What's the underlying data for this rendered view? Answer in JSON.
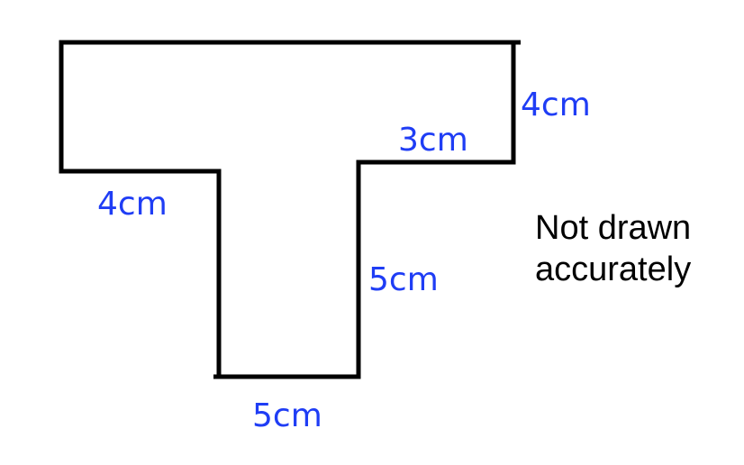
{
  "colors": {
    "label_color": "#1f3df5",
    "outline_color": "#000000",
    "background": "#ffffff"
  },
  "labels": {
    "right_top": "4cm",
    "shoulder_right": "3cm",
    "shoulder_left": "4cm",
    "stem_right": "5cm",
    "stem_bottom": "5cm"
  },
  "note": {
    "line1": "Not drawn",
    "line2": "accurately"
  }
}
